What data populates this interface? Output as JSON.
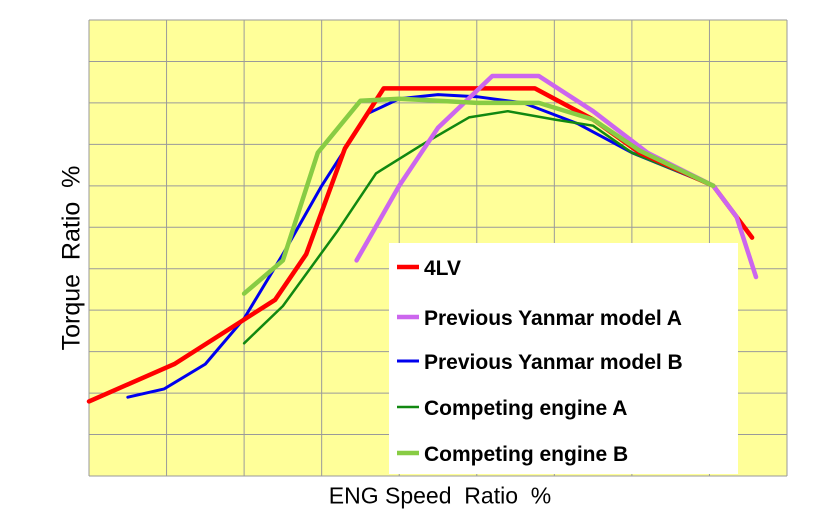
{
  "chart_data": {
    "type": "line",
    "xlabel": "ENG Speed  Ratio  %",
    "ylabel": "Torque  Ratio  %",
    "grid": true,
    "legend_position": "bottom-right",
    "background_color": "#ffff99",
    "x_grid_divisions": 9,
    "y_grid_divisions": 11,
    "series": [
      {
        "name": "4LV",
        "color": "#ff0000",
        "points": [
          [
            0,
            1.8
          ],
          [
            1.1,
            2.7
          ],
          [
            2.4,
            4.25
          ],
          [
            2.8,
            5.35
          ],
          [
            3.3,
            7.9
          ],
          [
            3.8,
            9.35
          ],
          [
            5.0,
            9.35
          ],
          [
            5.75,
            9.35
          ],
          [
            6.5,
            8.6
          ],
          [
            7.1,
            7.8
          ],
          [
            8.05,
            7.0
          ],
          [
            8.55,
            5.75
          ]
        ]
      },
      {
        "name": "Previous Yanmar model A",
        "color": "#cc66ee",
        "points": [
          [
            3.45,
            5.2
          ],
          [
            4.0,
            7.0
          ],
          [
            4.5,
            8.4
          ],
          [
            5.2,
            9.65
          ],
          [
            5.8,
            9.65
          ],
          [
            6.5,
            8.8
          ],
          [
            7.2,
            7.8
          ],
          [
            8.05,
            7.0
          ],
          [
            8.35,
            6.25
          ],
          [
            8.6,
            4.8
          ]
        ]
      },
      {
        "name": "Previous Yanmar model B",
        "color": "#0000ee",
        "points": [
          [
            0.5,
            1.9
          ],
          [
            0.97,
            2.1
          ],
          [
            1.5,
            2.7
          ],
          [
            2.0,
            3.8
          ],
          [
            2.5,
            5.35
          ],
          [
            3.0,
            7.0
          ],
          [
            3.6,
            8.75
          ],
          [
            4.0,
            9.1
          ],
          [
            4.5,
            9.2
          ],
          [
            5.0,
            9.15
          ],
          [
            5.6,
            9.0
          ],
          [
            6.3,
            8.5
          ],
          [
            7.0,
            7.8
          ],
          [
            8.05,
            7.0
          ]
        ]
      },
      {
        "name": "Competing engine A",
        "color": "#118811",
        "points": [
          [
            2.0,
            3.2
          ],
          [
            2.5,
            4.1
          ],
          [
            3.2,
            5.9
          ],
          [
            3.7,
            7.3
          ],
          [
            4.3,
            8.0
          ],
          [
            4.9,
            8.65
          ],
          [
            5.4,
            8.8
          ],
          [
            6.0,
            8.6
          ],
          [
            6.5,
            8.45
          ],
          [
            7.0,
            7.8
          ],
          [
            8.05,
            7.0
          ]
        ]
      },
      {
        "name": "Competing engine B",
        "color": "#88cc44",
        "points": [
          [
            2.0,
            4.4
          ],
          [
            2.5,
            5.2
          ],
          [
            2.95,
            7.8
          ],
          [
            3.5,
            9.05
          ],
          [
            4.0,
            9.1
          ],
          [
            4.5,
            9.05
          ],
          [
            5.0,
            9.0
          ],
          [
            5.8,
            9.0
          ],
          [
            6.5,
            8.6
          ],
          [
            7.1,
            7.85
          ],
          [
            8.05,
            7.0
          ]
        ]
      }
    ]
  }
}
